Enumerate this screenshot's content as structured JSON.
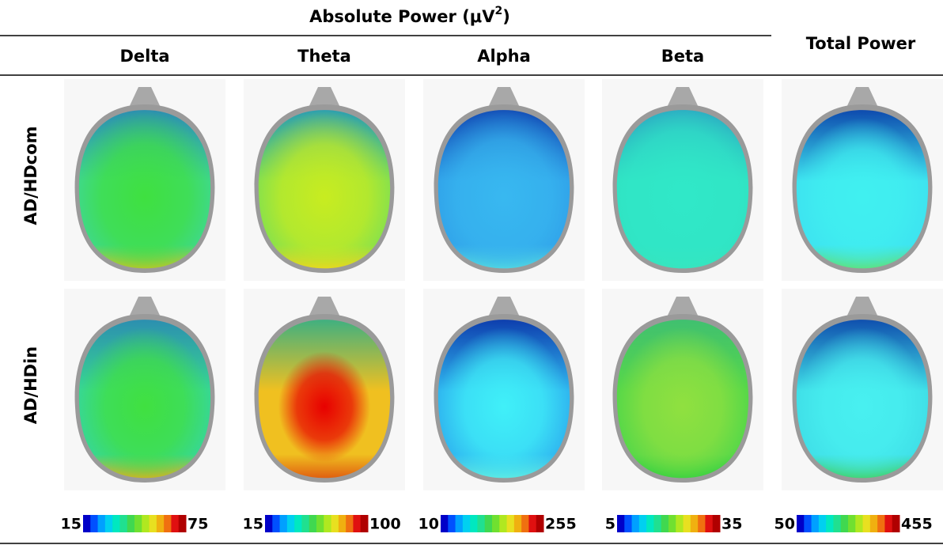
{
  "header": {
    "title": {
      "text": "Absolute Power (μV",
      "superscript": "2",
      "suffix": ")"
    },
    "total_title": "Total Power",
    "columns": [
      "Delta",
      "Theta",
      "Alpha",
      "Beta"
    ]
  },
  "rows": [
    "AD/HDcom",
    "AD/HDin"
  ],
  "color_scales": [
    {
      "min": 15,
      "max": 75
    },
    {
      "min": 15,
      "max": 100
    },
    {
      "min": 10,
      "max": 255
    },
    {
      "min": 5,
      "max": 35
    },
    {
      "min": 50,
      "max": 455
    }
  ]
}
